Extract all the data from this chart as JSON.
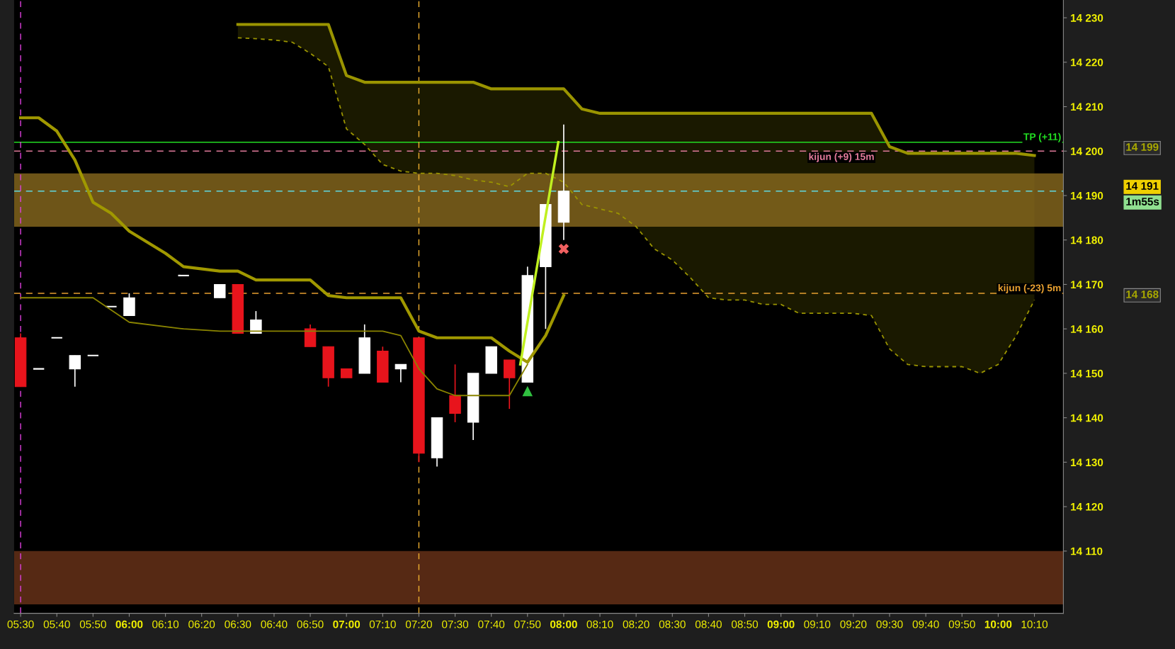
{
  "chart_data": {
    "type": "candlestick",
    "x": [
      5.5,
      5.5833,
      5.6667,
      5.75,
      5.8333,
      5.9167,
      6.0,
      6.25,
      6.4167,
      6.5,
      6.5833,
      6.8333,
      6.9167,
      7.0,
      7.0833,
      7.1667,
      7.25,
      7.3333,
      7.4167,
      7.5,
      7.5833,
      7.6667,
      7.75,
      7.8333,
      7.9167,
      8.0
    ],
    "ohlc": [
      [
        14158,
        14159,
        14147,
        14147
      ],
      [
        14151,
        14151,
        14151,
        14151
      ],
      [
        14158,
        14158,
        14158,
        14158
      ],
      [
        14151,
        14154,
        14147,
        14154
      ],
      [
        14154,
        14154,
        14154,
        14154
      ],
      [
        14165,
        14165,
        14165,
        14165
      ],
      [
        14163,
        14168,
        14163,
        14167
      ],
      [
        14172,
        14172,
        14172,
        14172
      ],
      [
        14167,
        14170,
        14167,
        14170
      ],
      [
        14170,
        14170,
        14159,
        14159
      ],
      [
        14159,
        14164,
        14159,
        14162
      ],
      [
        14160,
        14161,
        14156,
        14156
      ],
      [
        14156,
        14156,
        14147,
        14149
      ],
      [
        14151,
        14151,
        14149,
        14149
      ],
      [
        14150,
        14161,
        14150,
        14158
      ],
      [
        14155,
        14156,
        14148,
        14148
      ],
      [
        14151,
        14152,
        14148,
        14152
      ],
      [
        14158,
        14158,
        14130,
        14132
      ],
      [
        14131,
        14140,
        14129,
        14140
      ],
      [
        14145,
        14152,
        14139,
        14141
      ],
      [
        14139,
        14150,
        14135,
        14150
      ],
      [
        14150,
        14156,
        14150,
        14156
      ],
      [
        14153,
        14153,
        14142,
        14149
      ],
      [
        14148,
        14174,
        14148,
        14172
      ],
      [
        14174,
        14188,
        14160,
        14188
      ],
      [
        14184,
        14206,
        14180,
        14191
      ]
    ],
    "colors": [
      "#e8141c",
      "#ffffff",
      "#ffffff",
      "#ffffff",
      "#ffffff",
      "#ffffff",
      "#ffffff",
      "#ffffff",
      "#ffffff",
      "#e8141c",
      "#ffffff",
      "#e8141c",
      "#e8141c",
      "#e8141c",
      "#ffffff",
      "#e8141c",
      "#ffffff",
      "#e8141c",
      "#ffffff",
      "#e8141c",
      "#ffffff",
      "#ffffff",
      "#e8141c",
      "#ffffff",
      "#ffffff",
      "#ffffff"
    ],
    "series": [
      {
        "type": "line",
        "color": "#a09800",
        "x": [
          5.5,
          5.5833,
          5.6667,
          5.75,
          5.8333,
          5.9167,
          6.0,
          6.1667,
          6.25,
          6.4167,
          6.5,
          6.5833,
          6.8333,
          6.9167,
          7.0,
          7.25,
          7.3333,
          7.4167,
          7.6667,
          7.75,
          7.8333,
          7.9167,
          8.0
        ],
        "values": [
          14207.5,
          14207.5,
          14204.5,
          14198,
          14188.5,
          14186,
          14182,
          14177,
          14174,
          14173,
          14173,
          14171,
          14171,
          14167.5,
          14167,
          14167,
          14159.5,
          14158,
          14158,
          14155,
          14152.5,
          14158.5,
          14167.5
        ]
      },
      {
        "type": "line",
        "color": "#8a8400",
        "x": [
          5.5,
          5.8333,
          6.0,
          6.25,
          6.4167,
          7.1667,
          7.25,
          7.3333,
          7.4167,
          7.5,
          7.75,
          7.8333
        ],
        "values": [
          14167,
          14167,
          14161.5,
          14160,
          14159.5,
          14159.5,
          14158.5,
          14151,
          14146.5,
          14145,
          14145,
          14152
        ]
      },
      {
        "type": "area",
        "color": "#9a9400",
        "x": [
          6.5,
          6.5833,
          6.6667,
          6.75,
          6.8333,
          6.9167,
          7.0,
          7.0833,
          7.1667,
          7.25,
          7.3333,
          7.4167,
          7.5,
          7.5833,
          7.6667,
          7.75,
          7.8333,
          7.9167,
          8.0,
          8.0833,
          8.1667,
          8.25,
          8.3333,
          8.4167,
          8.5,
          8.5833,
          8.6667,
          8.75,
          8.8333,
          8.9167,
          9.0,
          9.0833,
          9.1667,
          9.25,
          9.3333,
          9.4167,
          9.5,
          9.5833,
          9.6667,
          9.75,
          9.8333,
          9.9167,
          10.0,
          10.0833,
          10.1667
        ],
        "values": [
          14228.5,
          14228.5,
          14228.5,
          14228.5,
          14228.5,
          14228.5,
          14217,
          14215.5,
          14215.5,
          14215.5,
          14215.5,
          14215.5,
          14215.5,
          14215.5,
          14214,
          14214,
          14214,
          14214,
          14214,
          14209.5,
          14208.5,
          14208.5,
          14208.5,
          14208.5,
          14208.5,
          14208.5,
          14208.5,
          14208.5,
          14208.5,
          14208.5,
          14208.5,
          14208.5,
          14208.5,
          14208.5,
          14208.5,
          14208.5,
          14201,
          14199.5,
          14199.5,
          14199.5,
          14199.5,
          14199.5,
          14199.5,
          14199.5,
          14199
        ]
      },
      {
        "type": "line",
        "color": "#9a9400",
        "line_style": "dashed",
        "x": [
          6.5,
          6.5833,
          6.6667,
          6.75,
          6.8333,
          6.9167,
          7.0,
          7.0833,
          7.1667,
          7.25,
          7.3333,
          7.4167,
          7.5,
          7.5833,
          7.6667,
          7.75,
          7.8333,
          7.9167,
          8.0,
          8.0833,
          8.1667,
          8.25,
          8.3333,
          8.4167,
          8.5,
          8.5833,
          8.6667,
          8.75,
          8.8333,
          8.9167,
          9.0,
          9.0833,
          9.1667,
          9.25,
          9.3333,
          9.4167,
          9.5,
          9.5833,
          9.6667,
          9.75,
          9.8333,
          9.9167,
          10.0,
          10.0833,
          10.1667
        ],
        "values": [
          14225.5,
          14225.3,
          14225,
          14224.5,
          14222,
          14219,
          14205,
          14201.5,
          14197,
          14195.5,
          14195,
          14195,
          14194.5,
          14193.5,
          14193,
          14192,
          14195,
          14195,
          14193,
          14188,
          14187,
          14186,
          14183,
          14178,
          14175.5,
          14171.5,
          14167,
          14166.5,
          14166.5,
          14165.5,
          14165.5,
          14163.5,
          14163.5,
          14163.5,
          14163.5,
          14163,
          14155.5,
          14152,
          14151.5,
          14151.5,
          14151.5,
          14150,
          14152,
          14158.5,
          14166.5
        ]
      },
      {
        "type": "line",
        "color": "#c0f020",
        "x": [
          7.8,
          7.975
        ],
        "values": [
          14152,
          14202
        ]
      },
      {
        "type": "scatter",
        "color": "#30c040",
        "marker": "triangle",
        "x": [
          7.8333
        ],
        "values": [
          14146
        ]
      },
      {
        "type": "scatter",
        "color": "#f06060",
        "marker": "cross",
        "x": [
          8.0
        ],
        "values": [
          14178
        ]
      }
    ],
    "bands": [
      {
        "axis": "y",
        "from": 14183,
        "to": 14195,
        "color": "#8a6a1e"
      },
      {
        "axis": "y",
        "from": 14098,
        "to": 14110,
        "color": "#6b3319"
      }
    ],
    "ref_lines": [
      {
        "axis": "y",
        "value": 14202,
        "label": "TP (+11)",
        "color": "#22dd22",
        "line_style": "solid"
      },
      {
        "axis": "y",
        "value": 14200,
        "label": "kijun (+9) 15m",
        "color": "#e07a9a",
        "line_style": "dashed"
      },
      {
        "axis": "y",
        "value": 14191,
        "color": "#60d8e0",
        "line_style": "dashed"
      },
      {
        "axis": "y",
        "value": 14168,
        "label": "kijun (-23) 5m",
        "color": "#e8a030",
        "line_style": "dashed"
      },
      {
        "axis": "x",
        "value": 5.5,
        "color": "#e040e0",
        "line_style": "dashed"
      },
      {
        "axis": "x",
        "value": 7.3333,
        "color": "#f0b030",
        "line_style": "dashed"
      }
    ],
    "annotations": [
      "14 199",
      "14 191",
      "1m55s",
      "14 168"
    ],
    "xlim": [
      5.47,
      10.3
    ],
    "ylim": [
      14096,
      14234
    ],
    "xticks": [
      {
        "value": 5.5,
        "label": "05:30"
      },
      {
        "value": 5.6667,
        "label": "05:40"
      },
      {
        "value": 5.8333,
        "label": "05:50"
      },
      {
        "value": 6,
        "label": "06:00"
      },
      {
        "value": 6.1667,
        "label": "06:10"
      },
      {
        "value": 6.3333,
        "label": "06:20"
      },
      {
        "value": 6.5,
        "label": "06:30"
      },
      {
        "value": 6.6667,
        "label": "06:40"
      },
      {
        "value": 6.8333,
        "label": "06:50"
      },
      {
        "value": 7,
        "label": "07:00"
      },
      {
        "value": 7.1667,
        "label": "07:10"
      },
      {
        "value": 7.3333,
        "label": "07:20"
      },
      {
        "value": 7.5,
        "label": "07:30"
      },
      {
        "value": 7.6667,
        "label": "07:40"
      },
      {
        "value": 7.8333,
        "label": "07:50"
      },
      {
        "value": 8,
        "label": "08:00"
      },
      {
        "value": 8.1667,
        "label": "08:10"
      },
      {
        "value": 8.3333,
        "label": "08:20"
      },
      {
        "value": 8.5,
        "label": "08:30"
      },
      {
        "value": 8.6667,
        "label": "08:40"
      },
      {
        "value": 8.8333,
        "label": "08:50"
      },
      {
        "value": 9,
        "label": "09:00"
      },
      {
        "value": 9.1667,
        "label": "09:10"
      },
      {
        "value": 9.3333,
        "label": "09:20"
      },
      {
        "value": 9.5,
        "label": "09:30"
      },
      {
        "value": 9.6667,
        "label": "09:40"
      },
      {
        "value": 9.8333,
        "label": "09:50"
      },
      {
        "value": 10,
        "label": "10:00"
      },
      {
        "value": 10.1667,
        "label": "10:10"
      }
    ],
    "yticks": [
      {
        "value": 14110,
        "label": "14 110"
      },
      {
        "value": 14120,
        "label": "14 120"
      },
      {
        "value": 14130,
        "label": "14 130"
      },
      {
        "value": 14140,
        "label": "14 140"
      },
      {
        "value": 14150,
        "label": "14 150"
      },
      {
        "value": 14160,
        "label": "14 160"
      },
      {
        "value": 14170,
        "label": "14 170"
      },
      {
        "value": 14180,
        "label": "14 180"
      },
      {
        "value": 14190,
        "label": "14 190"
      },
      {
        "value": 14200,
        "label": "14 200"
      },
      {
        "value": 14210,
        "label": "14 210"
      },
      {
        "value": 14220,
        "label": "14 220"
      },
      {
        "value": 14230,
        "label": "14 230"
      }
    ],
    "grid": false,
    "legend": false
  }
}
